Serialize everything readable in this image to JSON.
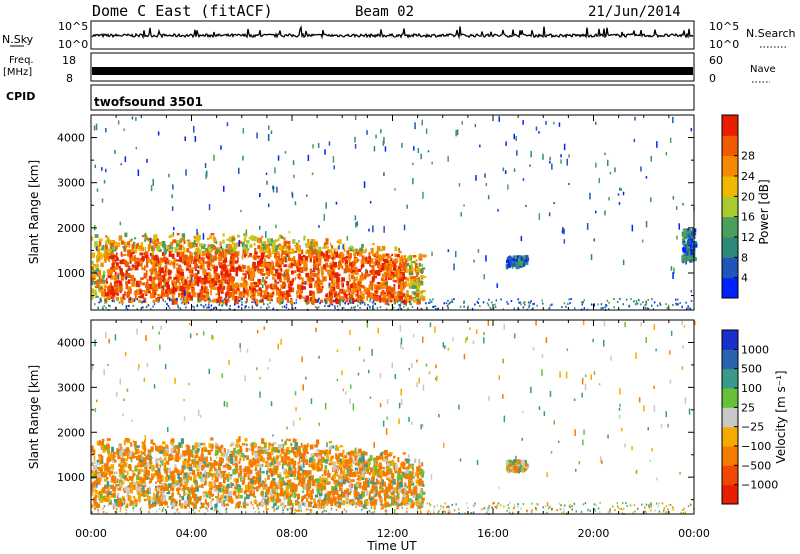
{
  "header": {
    "station": "Dome C East (fitACF)",
    "beam": "Beam 02",
    "date": "21/Jun/2014"
  },
  "summary": {
    "nsky_label": "N.Sky",
    "nsky_tick_top": "10^5",
    "nsky_tick_bottom": "10^0",
    "nsearch_label": "N.Search",
    "nsearch_tick_top": "10^5",
    "nsearch_tick_bottom": "10^0",
    "freq_label_1": "Freq.",
    "freq_label_2": "[MHz]",
    "freq_tick_top": "18",
    "freq_tick_bottom": "8",
    "nave_label": "Nave",
    "nave_tick_top": "60",
    "nave_tick_bottom": "0",
    "cpid_label": "CPID",
    "cpid_value": "twofsound 3501"
  },
  "colors": {
    "power": [
      "#0022ff",
      "#2255bb",
      "#2e8a7a",
      "#4aa05a",
      "#a8cc30",
      "#f0b800",
      "#f58a00",
      "#f05a00",
      "#e81e00"
    ],
    "velocity": [
      "#e81e00",
      "#f04800",
      "#f57a00",
      "#f5aa00",
      "#c8c8c8",
      "#66c03a",
      "#3a9a8a",
      "#2a64b0",
      "#1a30cc"
    ]
  },
  "chart_data": [
    {
      "type": "heatmap",
      "name": "power",
      "xlabel": "",
      "ylabel": "Slant Range [km]",
      "xlim": [
        0,
        24
      ],
      "ylim": [
        180,
        4500
      ],
      "yticks": [
        "1000",
        "2000",
        "3000",
        "4000"
      ],
      "colorbar": {
        "label": "Power [dB]",
        "ticks": [
          "4",
          "8",
          "12",
          "16",
          "20",
          "24",
          "28"
        ],
        "range": [
          0,
          32
        ]
      },
      "echo_regions": [
        {
          "t_start": 0.0,
          "t_end": 13.2,
          "range_min": 400,
          "range_max": 1800,
          "level": "strong"
        },
        {
          "t_start": 16.5,
          "t_end": 17.3,
          "range_min": 1200,
          "range_max": 1400,
          "level": "weak"
        },
        {
          "t_start": 23.5,
          "t_end": 24.0,
          "range_min": 1300,
          "range_max": 2000,
          "level": "weak"
        }
      ]
    },
    {
      "type": "heatmap",
      "name": "velocity",
      "xlabel": "Time UT",
      "ylabel": "Slant Range [km]",
      "xlim": [
        0,
        24
      ],
      "ylim": [
        180,
        4500
      ],
      "xticks": [
        "00:00",
        "04:00",
        "08:00",
        "12:00",
        "16:00",
        "20:00",
        "00:00"
      ],
      "yticks": [
        "1000",
        "2000",
        "3000",
        "4000"
      ],
      "colorbar": {
        "label": "Velocity [m s⁻¹]",
        "ticks": [
          "1000",
          "500",
          "100",
          "25",
          "−25",
          "−100",
          "−500",
          "−1000"
        ]
      },
      "echo_regions": [
        {
          "t_start": 0.0,
          "t_end": 13.2,
          "range_min": 400,
          "range_max": 1800,
          "velocity_sign": "mostly negative"
        },
        {
          "t_start": 16.5,
          "t_end": 17.3,
          "range_min": 1200,
          "range_max": 1400,
          "velocity_sign": "near zero"
        }
      ]
    }
  ]
}
